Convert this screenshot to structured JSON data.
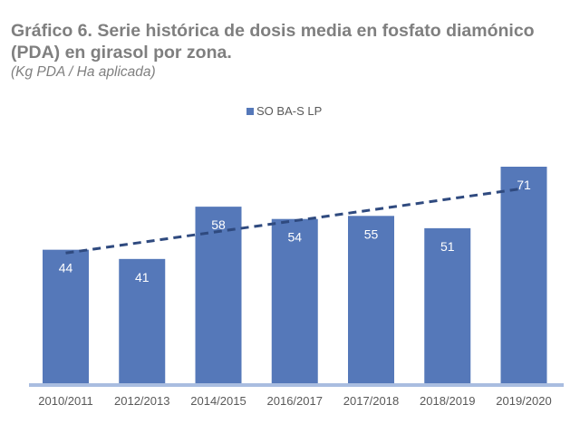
{
  "chart_data": {
    "type": "bar",
    "title": "Gráfico 6. Serie histórica de dosis media en fosfato diamónico (PDA) en girasol por zona.",
    "subtitle": "(Kg PDA / Ha aplicada)",
    "xlabel": "",
    "ylabel": "",
    "ylim": [
      0,
      71
    ],
    "grid": false,
    "legend_position": "top-center",
    "categories": [
      "2010/2011",
      "2012/2013",
      "2014/2015",
      "2016/2017",
      "2017/2018",
      "2018/2019",
      "2019/2020"
    ],
    "series": [
      {
        "name": "SO BA-S LP",
        "values": [
          44,
          41,
          58,
          54,
          55,
          51,
          71
        ],
        "color": "#5578b9"
      }
    ],
    "trendline": {
      "type": "linear",
      "style": "dashed",
      "color": "#2f4a7f"
    }
  }
}
